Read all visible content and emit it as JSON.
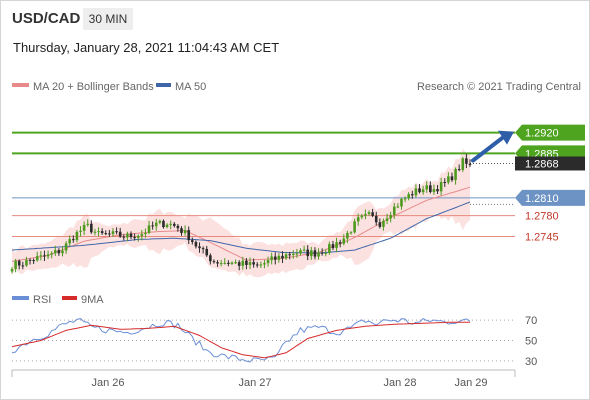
{
  "header": {
    "pair": "USD/CAD",
    "timeframe": "30 MIN",
    "timestamp": "Thursday, January 28, 2021 11:04:43 AM CET"
  },
  "legend": {
    "ma20_label": "MA 20 + Bollinger Bands",
    "ma50_label": "MA 50",
    "credit": "Research © 2021 Trading Central",
    "rsi_label": "RSI",
    "ma9_label": "9MA"
  },
  "colors": {
    "resistance_green": "#4fa41f",
    "support_blue": "#6d93c4",
    "support_red": "#e8897e",
    "ma20": "#e88a8a",
    "bollinger_fill": "#fcdcdc",
    "ma50": "#3f66a8",
    "candle_up": "#4e9a1f",
    "candle_down": "#2b2b2b",
    "arrow": "#2e5ea8",
    "rsi": "#6a8fd6",
    "rsi_ma": "#d62b2b",
    "last_price_bg": "#2b2b2b"
  },
  "chart_data": [
    {
      "type": "candlestick",
      "title": "USD/CAD",
      "timeframe": "30 MIN",
      "x_ticks": [
        "Jan 26",
        "Jan 27",
        "Jan 28",
        "Jan 29"
      ],
      "ylim": [
        1.268,
        1.2975
      ],
      "last_price": 1.2868,
      "levels": [
        {
          "value": 1.292,
          "label": "1.2920",
          "role": "resistance"
        },
        {
          "value": 1.2885,
          "label": "1.2885",
          "role": "resistance"
        },
        {
          "value": 1.281,
          "label": "1.2810",
          "role": "pivot"
        },
        {
          "value": 1.278,
          "label": "1.2780",
          "role": "support"
        },
        {
          "value": 1.2745,
          "label": "1.2745",
          "role": "support"
        }
      ],
      "series": [
        {
          "name": "MA 20 + Bollinger Bands"
        },
        {
          "name": "MA 50"
        }
      ],
      "price_anchors": [
        [
          0,
          1.2697
        ],
        [
          3,
          1.27
        ],
        [
          6,
          1.2707
        ],
        [
          10,
          1.2712
        ],
        [
          14,
          1.2723
        ],
        [
          17,
          1.2745
        ],
        [
          19,
          1.2755
        ],
        [
          21,
          1.2762
        ],
        [
          24,
          1.2748
        ],
        [
          28,
          1.2748
        ],
        [
          32,
          1.2745
        ],
        [
          36,
          1.275
        ],
        [
          40,
          1.2765
        ],
        [
          43,
          1.2768
        ],
        [
          46,
          1.276
        ],
        [
          49,
          1.2745
        ],
        [
          52,
          1.2723
        ],
        [
          56,
          1.2703
        ],
        [
          62,
          1.27
        ],
        [
          68,
          1.2695
        ],
        [
          72,
          1.2705
        ],
        [
          78,
          1.2718
        ],
        [
          84,
          1.2717
        ],
        [
          88,
          1.2725
        ],
        [
          92,
          1.2742
        ],
        [
          96,
          1.2772
        ],
        [
          99,
          1.278
        ],
        [
          102,
          1.2768
        ],
        [
          105,
          1.2788
        ],
        [
          108,
          1.2805
        ],
        [
          111,
          1.2818
        ],
        [
          114,
          1.2826
        ],
        [
          117,
          1.2825
        ],
        [
          120,
          1.2834
        ],
        [
          123,
          1.2853
        ],
        [
          125,
          1.287
        ],
        [
          127,
          1.2863
        ]
      ],
      "ma20_anchors": [
        [
          0,
          1.2703
        ],
        [
          10,
          1.2713
        ],
        [
          20,
          1.2737
        ],
        [
          30,
          1.2748
        ],
        [
          40,
          1.2753
        ],
        [
          48,
          1.2755
        ],
        [
          55,
          1.2735
        ],
        [
          65,
          1.2705
        ],
        [
          75,
          1.2708
        ],
        [
          85,
          1.2718
        ],
        [
          95,
          1.2743
        ],
        [
          105,
          1.2777
        ],
        [
          115,
          1.2806
        ],
        [
          127,
          1.2828
        ]
      ],
      "ma50_anchors": [
        [
          0,
          1.2722
        ],
        [
          20,
          1.273
        ],
        [
          35,
          1.274
        ],
        [
          45,
          1.2742
        ],
        [
          55,
          1.2738
        ],
        [
          65,
          1.2725
        ],
        [
          75,
          1.2718
        ],
        [
          85,
          1.2717
        ],
        [
          95,
          1.2722
        ],
        [
          105,
          1.2742
        ],
        [
          115,
          1.2775
        ],
        [
          127,
          1.2803
        ]
      ],
      "arrow_target": 1.292
    },
    {
      "type": "line",
      "title": "RSI",
      "x_ticks": [
        "Jan 26",
        "Jan 27",
        "Jan 28",
        "Jan 29"
      ],
      "y_ticks": [
        70,
        50,
        30
      ],
      "ylim": [
        25,
        80
      ],
      "series": [
        {
          "name": "RSI"
        },
        {
          "name": "9MA"
        }
      ],
      "rsi_anchors": [
        [
          0,
          40
        ],
        [
          5,
          50
        ],
        [
          10,
          57
        ],
        [
          14,
          65
        ],
        [
          18,
          70
        ],
        [
          22,
          63
        ],
        [
          27,
          60
        ],
        [
          32,
          58
        ],
        [
          37,
          63
        ],
        [
          42,
          68
        ],
        [
          46,
          65
        ],
        [
          50,
          52
        ],
        [
          54,
          40
        ],
        [
          58,
          35
        ],
        [
          63,
          32
        ],
        [
          68,
          30
        ],
        [
          73,
          32
        ],
        [
          76,
          48
        ],
        [
          80,
          60
        ],
        [
          85,
          63
        ],
        [
          90,
          58
        ],
        [
          94,
          62
        ],
        [
          98,
          70
        ],
        [
          101,
          66
        ],
        [
          104,
          70
        ],
        [
          108,
          70
        ],
        [
          112,
          67
        ],
        [
          116,
          70
        ],
        [
          120,
          68
        ],
        [
          124,
          70
        ],
        [
          127,
          68
        ]
      ],
      "ma9_anchors": [
        [
          0,
          44
        ],
        [
          8,
          50
        ],
        [
          15,
          60
        ],
        [
          22,
          65
        ],
        [
          30,
          61
        ],
        [
          38,
          62
        ],
        [
          45,
          64
        ],
        [
          52,
          55
        ],
        [
          58,
          43
        ],
        [
          64,
          36
        ],
        [
          70,
          33
        ],
        [
          76,
          38
        ],
        [
          82,
          52
        ],
        [
          90,
          60
        ],
        [
          98,
          64
        ],
        [
          106,
          66
        ],
        [
          114,
          67
        ],
        [
          122,
          68
        ],
        [
          127,
          68
        ]
      ]
    }
  ]
}
